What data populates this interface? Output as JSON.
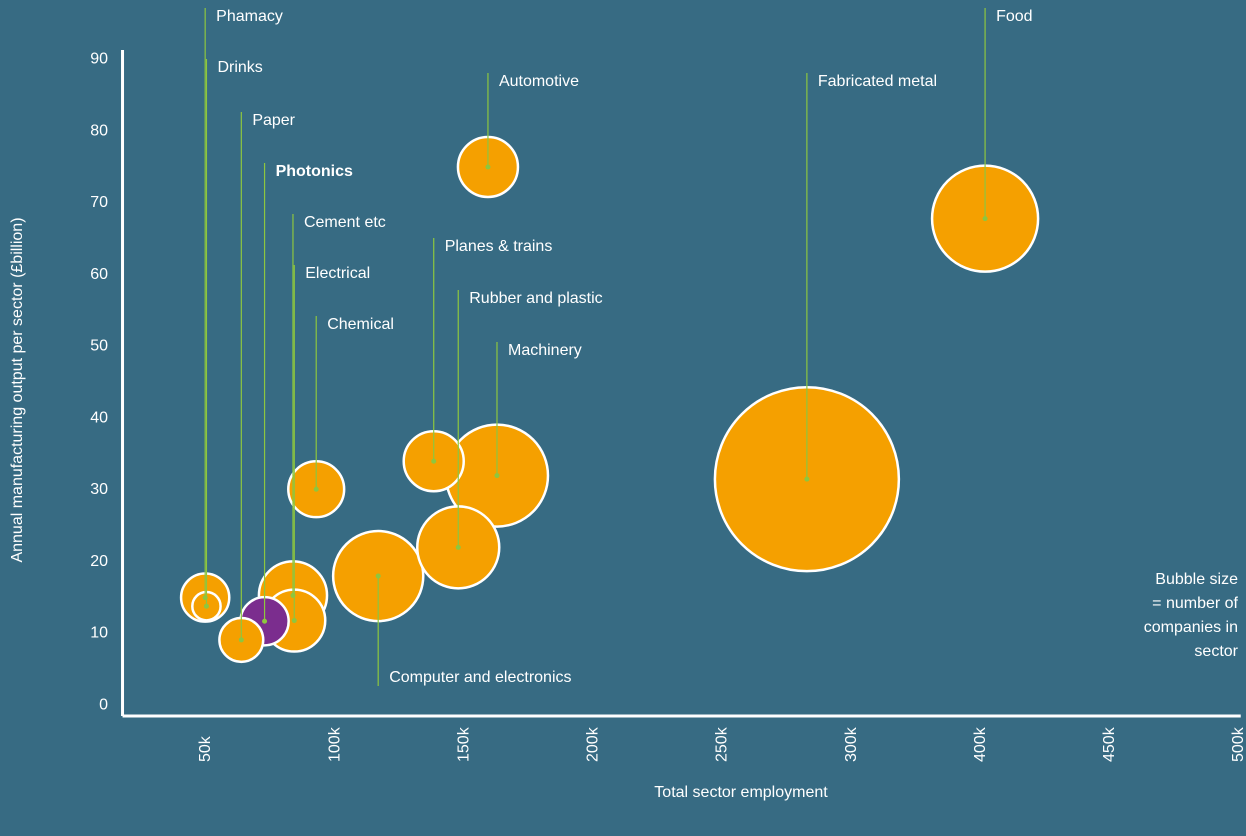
{
  "chart_data": {
    "type": "bubble",
    "x_label": "Total sector employment",
    "y_label": "Annual manufacturing output per sector (£billion)",
    "annotation": [
      "Bubble size",
      "= number of",
      "companies in",
      "sector"
    ],
    "categories": [
      "Phamacy",
      "Drinks",
      "Paper",
      "Photonics",
      "Cement etc",
      "Electrical",
      "Chemical",
      "Computer and electronics",
      "Planes & trains",
      "Rubber and plastic",
      "Machinery",
      "Automotive",
      "Fabricated metal",
      "Food"
    ],
    "x": [
      52000,
      52500,
      66000,
      75000,
      86000,
      86500,
      95000,
      119000,
      140500,
      150000,
      165000,
      161500,
      285000,
      404000
    ],
    "values": [
      15.0,
      13.8,
      9.1,
      11.7,
      15.3,
      11.8,
      30.1,
      18.0,
      34.0,
      22.0,
      32.0,
      75.0,
      31.5,
      67.8
    ],
    "sizes": [
      580,
      200,
      480,
      580,
      1160,
      960,
      780,
      2030,
      900,
      1680,
      2600,
      900,
      8460,
      2810
    ],
    "colors": [
      "#f5a000",
      "#f5a000",
      "#f5a000",
      "#7b2d8e",
      "#f5a000",
      "#f5a000",
      "#f5a000",
      "#f5a000",
      "#f5a000",
      "#f5a000",
      "#f5a000",
      "#f5a000",
      "#f5a000",
      "#f5a000"
    ],
    "highlight": 3,
    "leader_color": "#8dc63f",
    "xlim": [
      20000,
      503000
    ],
    "xticks": [
      {
        "value": 50000,
        "label": "50k"
      },
      {
        "value": 100000,
        "label": "100k"
      },
      {
        "value": 150000,
        "label": "150k"
      },
      {
        "value": 200000,
        "label": "200k"
      },
      {
        "value": 250000,
        "label": "250k"
      },
      {
        "value": 300000,
        "label": "300k"
      },
      {
        "value": 400000,
        "label": "400k"
      },
      {
        "value": 450000,
        "label": "450k"
      },
      {
        "value": 500000,
        "label": "500k"
      }
    ],
    "ylim": [
      -1.5,
      91.3
    ],
    "yticks": [
      0,
      10,
      20,
      30,
      40,
      50,
      60,
      70,
      80,
      90
    ],
    "grid": false
  }
}
